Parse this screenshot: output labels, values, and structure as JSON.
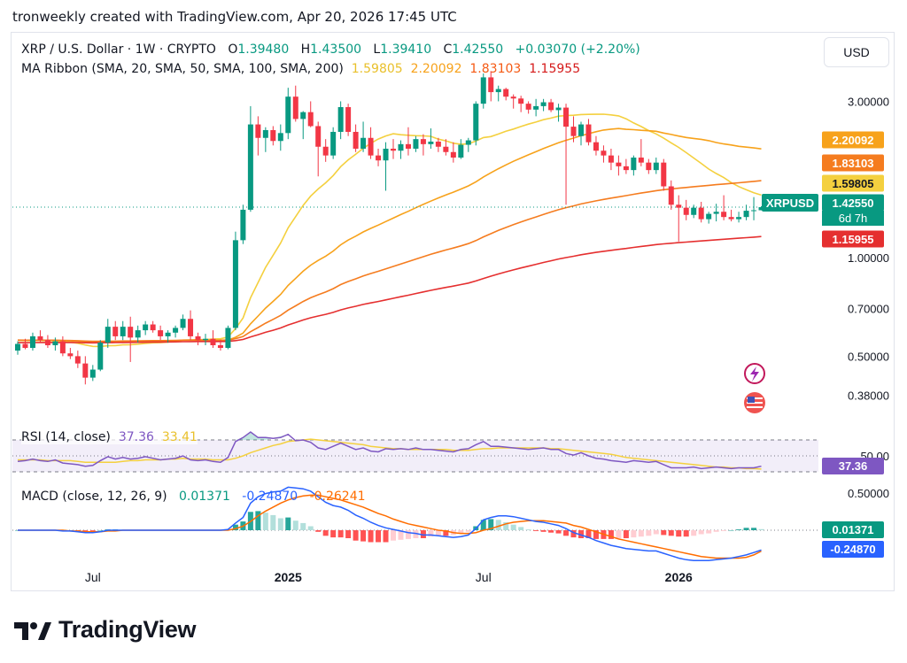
{
  "header": {
    "text": "tronweekly created with TradingView.com, Apr 20, 2026 17:45 UTC"
  },
  "currency_button": "USD",
  "legend": {
    "symbol": "XRP / U.S. Dollar · 1W · CRYPTO",
    "o_label": "O",
    "o": "1.39480",
    "h_label": "H",
    "h": "1.43500",
    "l_label": "L",
    "l": "1.39410",
    "c_label": "C",
    "c": "1.42550",
    "change": "+0.03070 (+2.20%)",
    "ma_label": "MA Ribbon (SMA, 20, SMA, 50, SMA, 100, SMA, 200)",
    "ma_values": [
      "1.59805",
      "2.20092",
      "1.83103",
      "1.15955"
    ]
  },
  "rsi_legend": {
    "label": "RSI (14, close)",
    "rsi": "37.36",
    "ma": "33.41"
  },
  "macd_legend": {
    "label": "MACD (close, 12, 26, 9)",
    "hist": "0.01371",
    "macd": "-0.24870",
    "signal": "-0.26241"
  },
  "brand": "TradingView",
  "colors": {
    "up": "#089981",
    "down": "#f23645",
    "sma20": "#f4d03f",
    "sma50": "#f7a21b",
    "sma100": "#f57c1f",
    "sma200": "#e52f2f",
    "rsi": "#7e57c2",
    "rsi_ma": "#f4d03f",
    "macd": "#2962ff",
    "signal": "#ff6d00"
  },
  "chart_data": [
    {
      "type": "candlestick",
      "title": "XRP / U.S. Dollar · 1W · CRYPTO",
      "y_scale": "log",
      "y_ticks": [
        "3.00000",
        "1.00000",
        "0.70000",
        "0.50000",
        "0.38000"
      ],
      "x_ticks": [
        "Jul",
        "2025",
        "Jul",
        "2026"
      ],
      "price_tags": [
        {
          "label": "2.20092",
          "value": 2.20092,
          "color": "#f7a21b"
        },
        {
          "label": "1.83103",
          "value": 1.83103,
          "color": "#f57c1f"
        },
        {
          "label": "1.59805",
          "value": 1.59805,
          "color": "#f4d03f"
        },
        {
          "label": "1.42550",
          "value": 1.4255,
          "color": "#089981"
        },
        {
          "label": "1.15955",
          "value": 1.15955,
          "color": "#e52f2f"
        }
      ],
      "symbol_tag": "XRPUSD",
      "countdown": "6d 7h",
      "last_close": 1.4255,
      "candles": [
        [
          0.52,
          0.555,
          0.505,
          0.545
        ],
        [
          0.545,
          0.565,
          0.525,
          0.53
        ],
        [
          0.53,
          0.59,
          0.52,
          0.575
        ],
        [
          0.575,
          0.6,
          0.55,
          0.56
        ],
        [
          0.56,
          0.58,
          0.53,
          0.54
        ],
        [
          0.54,
          0.57,
          0.52,
          0.555
        ],
        [
          0.555,
          0.575,
          0.5,
          0.51
        ],
        [
          0.51,
          0.53,
          0.49,
          0.5
        ],
        [
          0.5,
          0.52,
          0.46,
          0.475
        ],
        [
          0.475,
          0.5,
          0.41,
          0.43
        ],
        [
          0.43,
          0.47,
          0.42,
          0.455
        ],
        [
          0.455,
          0.56,
          0.45,
          0.55
        ],
        [
          0.55,
          0.65,
          0.53,
          0.615
        ],
        [
          0.615,
          0.64,
          0.56,
          0.575
        ],
        [
          0.575,
          0.64,
          0.56,
          0.615
        ],
        [
          0.615,
          0.66,
          0.48,
          0.57
        ],
        [
          0.57,
          0.62,
          0.55,
          0.6
        ],
        [
          0.6,
          0.64,
          0.58,
          0.625
        ],
        [
          0.625,
          0.64,
          0.59,
          0.6
        ],
        [
          0.6,
          0.62,
          0.56,
          0.575
        ],
        [
          0.575,
          0.6,
          0.55,
          0.59
        ],
        [
          0.59,
          0.62,
          0.57,
          0.61
        ],
        [
          0.61,
          0.67,
          0.6,
          0.65
        ],
        [
          0.65,
          0.69,
          0.56,
          0.575
        ],
        [
          0.575,
          0.59,
          0.54,
          0.56
        ],
        [
          0.56,
          0.585,
          0.54,
          0.565
        ],
        [
          0.565,
          0.6,
          0.53,
          0.54
        ],
        [
          0.54,
          0.56,
          0.52,
          0.53
        ],
        [
          0.53,
          0.62,
          0.525,
          0.61
        ],
        [
          0.61,
          1.2,
          0.6,
          1.13
        ],
        [
          1.13,
          1.45,
          1.1,
          1.4
        ],
        [
          1.4,
          2.9,
          1.38,
          2.55
        ],
        [
          2.55,
          2.7,
          2.05,
          2.32
        ],
        [
          2.32,
          2.5,
          2.1,
          2.45
        ],
        [
          2.45,
          2.52,
          2.2,
          2.27
        ],
        [
          2.27,
          2.55,
          2.12,
          2.4
        ],
        [
          2.4,
          3.3,
          2.3,
          3.1
        ],
        [
          3.1,
          3.35,
          2.6,
          2.65
        ],
        [
          2.65,
          2.8,
          2.3,
          2.78
        ],
        [
          2.78,
          3.0,
          2.5,
          2.52
        ],
        [
          2.52,
          2.6,
          1.77,
          2.18
        ],
        [
          2.18,
          2.3,
          1.96,
          2.05
        ],
        [
          2.05,
          2.5,
          2.0,
          2.42
        ],
        [
          2.42,
          3.0,
          2.3,
          2.88
        ],
        [
          2.88,
          2.95,
          2.35,
          2.42
        ],
        [
          2.42,
          2.55,
          2.1,
          2.15
        ],
        [
          2.15,
          2.6,
          2.1,
          2.32
        ],
        [
          2.32,
          2.5,
          2.0,
          2.05
        ],
        [
          2.05,
          2.15,
          1.9,
          1.98
        ],
        [
          1.98,
          2.25,
          1.6,
          2.15
        ],
        [
          2.15,
          2.3,
          2.0,
          2.12
        ],
        [
          2.12,
          2.28,
          2.0,
          2.22
        ],
        [
          2.22,
          2.5,
          2.05,
          2.15
        ],
        [
          2.15,
          2.35,
          2.1,
          2.3
        ],
        [
          2.3,
          2.38,
          2.05,
          2.22
        ],
        [
          2.22,
          2.48,
          2.15,
          2.26
        ],
        [
          2.26,
          2.32,
          2.1,
          2.18
        ],
        [
          2.18,
          2.3,
          2.05,
          2.1
        ],
        [
          2.1,
          2.25,
          1.95,
          2.02
        ],
        [
          2.02,
          2.3,
          2.0,
          2.21
        ],
        [
          2.21,
          2.32,
          2.1,
          2.28
        ],
        [
          2.28,
          3.0,
          2.2,
          2.95
        ],
        [
          2.95,
          3.65,
          2.85,
          3.55
        ],
        [
          3.55,
          3.7,
          3.0,
          3.2
        ],
        [
          3.2,
          3.35,
          3.0,
          3.27
        ],
        [
          3.27,
          3.3,
          3.02,
          3.1
        ],
        [
          3.1,
          3.15,
          2.85,
          3.06
        ],
        [
          3.06,
          3.12,
          2.78,
          2.95
        ],
        [
          2.95,
          3.0,
          2.75,
          2.83
        ],
        [
          2.83,
          3.05,
          2.7,
          2.9
        ],
        [
          2.9,
          3.05,
          2.8,
          2.98
        ],
        [
          2.98,
          3.05,
          2.78,
          2.82
        ],
        [
          2.82,
          2.95,
          2.6,
          2.87
        ],
        [
          2.87,
          2.95,
          1.45,
          2.51
        ],
        [
          2.51,
          2.7,
          2.25,
          2.35
        ],
        [
          2.35,
          2.6,
          2.2,
          2.55
        ],
        [
          2.55,
          2.65,
          2.2,
          2.25
        ],
        [
          2.25,
          2.35,
          2.05,
          2.12
        ],
        [
          2.12,
          2.2,
          1.95,
          2.05
        ],
        [
          2.05,
          2.15,
          1.85,
          1.95
        ],
        [
          1.95,
          2.05,
          1.78,
          1.9
        ],
        [
          1.9,
          2.0,
          1.8,
          1.85
        ],
        [
          1.85,
          2.05,
          1.78,
          2.02
        ],
        [
          2.02,
          2.3,
          1.9,
          1.95
        ],
        [
          1.95,
          2.0,
          1.8,
          1.85
        ],
        [
          1.85,
          2.02,
          1.8,
          1.95
        ],
        [
          1.95,
          2.0,
          1.6,
          1.65
        ],
        [
          1.65,
          1.72,
          1.4,
          1.45
        ],
        [
          1.45,
          1.55,
          1.12,
          1.42
        ],
        [
          1.42,
          1.5,
          1.3,
          1.35
        ],
        [
          1.35,
          1.45,
          1.32,
          1.42
        ],
        [
          1.42,
          1.48,
          1.28,
          1.31
        ],
        [
          1.31,
          1.38,
          1.27,
          1.36
        ],
        [
          1.36,
          1.46,
          1.29,
          1.38
        ],
        [
          1.38,
          1.55,
          1.3,
          1.33
        ],
        [
          1.33,
          1.4,
          1.29,
          1.31
        ],
        [
          1.31,
          1.38,
          1.28,
          1.33
        ],
        [
          1.33,
          1.45,
          1.3,
          1.39
        ],
        [
          1.39,
          1.53,
          1.3,
          1.395
        ],
        [
          1.3948,
          1.435,
          1.3941,
          1.4255
        ]
      ]
    },
    {
      "type": "line",
      "title": "RSI (14, close)",
      "series": [
        {
          "name": "RSI",
          "values": [
            43,
            44,
            46,
            44,
            43,
            45,
            41,
            40,
            39,
            37,
            38,
            44,
            49,
            46,
            48,
            46,
            47,
            49,
            47,
            45,
            46,
            47,
            50,
            45,
            44,
            45,
            43,
            42,
            48,
            68,
            73,
            80,
            73,
            73,
            72,
            73,
            77,
            69,
            70,
            67,
            60,
            58,
            62,
            66,
            62,
            58,
            60,
            56,
            55,
            59,
            58,
            59,
            58,
            60,
            58,
            58,
            57,
            56,
            55,
            58,
            59,
            64,
            68,
            62,
            62,
            61,
            60,
            59,
            58,
            59,
            60,
            58,
            58,
            53,
            51,
            54,
            50,
            47,
            46,
            44,
            43,
            42,
            44,
            43,
            42,
            43,
            39,
            35,
            35,
            35,
            36,
            34,
            35,
            36,
            35,
            34,
            35,
            35,
            35,
            37
          ]
        },
        {
          "name": "RSI MA",
          "values": [
            45,
            45,
            45,
            45,
            44,
            44,
            44,
            44,
            43,
            42,
            42,
            42,
            42,
            42,
            43,
            44,
            44,
            45,
            45,
            45,
            46,
            46,
            47,
            46,
            46,
            46,
            45,
            45,
            45,
            47,
            50,
            54,
            57,
            60,
            63,
            65,
            68,
            69,
            70,
            71,
            70,
            69,
            68,
            67,
            66,
            65,
            64,
            62,
            61,
            60,
            59,
            59,
            58,
            58,
            58,
            58,
            58,
            58,
            57,
            57,
            57,
            58,
            59,
            59,
            60,
            60,
            60,
            60,
            60,
            60,
            60,
            59,
            59,
            58,
            57,
            56,
            55,
            54,
            53,
            52,
            50,
            48,
            47,
            46,
            45,
            44,
            43,
            42,
            41,
            40,
            39,
            38,
            37,
            36,
            36,
            35,
            35,
            34,
            34,
            33.41
          ]
        }
      ],
      "ylim": [
        0,
        100
      ],
      "y_ticks": [
        "50.00"
      ],
      "bands": [
        30,
        70
      ],
      "tag": "37.36"
    },
    {
      "type": "line",
      "title": "MACD (close, 12, 26, 9)",
      "y_ticks": [
        "0.50000"
      ],
      "tags": [
        "0.01371",
        "-0.24870"
      ],
      "series": [
        {
          "name": "MACD",
          "values": [
            0,
            0,
            0,
            0,
            0,
            0,
            -0.01,
            -0.01,
            -0.02,
            -0.03,
            -0.03,
            -0.02,
            0,
            0,
            0,
            0,
            0,
            0,
            0,
            0,
            0,
            0,
            0,
            0,
            0,
            0,
            0,
            0,
            0.01,
            0.09,
            0.16,
            0.34,
            0.42,
            0.46,
            0.48,
            0.49,
            0.54,
            0.53,
            0.52,
            0.49,
            0.42,
            0.35,
            0.31,
            0.29,
            0.25,
            0.19,
            0.15,
            0.1,
            0.06,
            0.03,
            0.01,
            -0.01,
            -0.03,
            -0.04,
            -0.06,
            -0.06,
            -0.07,
            -0.08,
            -0.09,
            -0.08,
            -0.06,
            0.02,
            0.13,
            0.16,
            0.18,
            0.18,
            0.17,
            0.15,
            0.13,
            0.11,
            0.1,
            0.08,
            0.06,
            0.02,
            -0.03,
            -0.06,
            -0.09,
            -0.13,
            -0.16,
            -0.19,
            -0.21,
            -0.23,
            -0.24,
            -0.25,
            -0.26,
            -0.26,
            -0.29,
            -0.32,
            -0.35,
            -0.37,
            -0.38,
            -0.38,
            -0.38,
            -0.37,
            -0.36,
            -0.35,
            -0.33,
            -0.31,
            -0.28,
            -0.2487
          ]
        },
        {
          "name": "Signal",
          "values": [
            0,
            0,
            0,
            0,
            0,
            0,
            0,
            -0.01,
            -0.01,
            -0.02,
            -0.02,
            -0.02,
            -0.01,
            -0.01,
            0,
            0,
            0,
            0,
            0,
            0,
            0,
            0,
            0,
            0,
            0,
            0,
            0,
            0,
            0,
            0.02,
            0.05,
            0.11,
            0.18,
            0.24,
            0.29,
            0.34,
            0.38,
            0.41,
            0.43,
            0.44,
            0.44,
            0.42,
            0.4,
            0.38,
            0.35,
            0.32,
            0.29,
            0.25,
            0.21,
            0.18,
            0.14,
            0.11,
            0.08,
            0.06,
            0.04,
            0.02,
            0,
            -0.01,
            -0.03,
            -0.04,
            -0.04,
            -0.03,
            0,
            0.02,
            0.05,
            0.08,
            0.1,
            0.11,
            0.12,
            0.12,
            0.12,
            0.11,
            0.1,
            0.09,
            0.06,
            0.04,
            0.01,
            -0.02,
            -0.05,
            -0.08,
            -0.11,
            -0.13,
            -0.15,
            -0.17,
            -0.19,
            -0.21,
            -0.23,
            -0.25,
            -0.27,
            -0.29,
            -0.31,
            -0.33,
            -0.34,
            -0.35,
            -0.35,
            -0.35,
            -0.35,
            -0.34,
            -0.31,
            -0.26241
          ]
        },
        {
          "name": "Histogram",
          "values": [
            0,
            0,
            0,
            0,
            0,
            0,
            -0.01,
            0,
            -0.01,
            -0.01,
            -0.01,
            0,
            0.01,
            0.01,
            0,
            0,
            0,
            0,
            0,
            0,
            0,
            0,
            0,
            0,
            0,
            0,
            0,
            0,
            0.01,
            0.07,
            0.11,
            0.23,
            0.24,
            0.22,
            0.19,
            0.15,
            0.16,
            0.12,
            0.09,
            0.05,
            -0.02,
            -0.07,
            -0.09,
            -0.09,
            -0.1,
            -0.13,
            -0.14,
            -0.15,
            -0.15,
            -0.15,
            -0.13,
            -0.12,
            -0.11,
            -0.1,
            -0.1,
            -0.08,
            -0.07,
            -0.07,
            -0.06,
            -0.04,
            -0.02,
            0.05,
            0.13,
            0.14,
            0.13,
            0.1,
            0.07,
            0.04,
            0.01,
            -0.01,
            -0.02,
            -0.03,
            -0.04,
            -0.07,
            -0.09,
            -0.1,
            -0.1,
            -0.11,
            -0.11,
            -0.11,
            -0.1,
            -0.1,
            -0.09,
            -0.08,
            -0.07,
            -0.05,
            -0.06,
            -0.07,
            -0.08,
            -0.08,
            -0.07,
            -0.05,
            -0.04,
            -0.02,
            -0.01,
            0,
            0.01,
            0.03,
            0.03,
            0.01371
          ]
        }
      ]
    }
  ]
}
